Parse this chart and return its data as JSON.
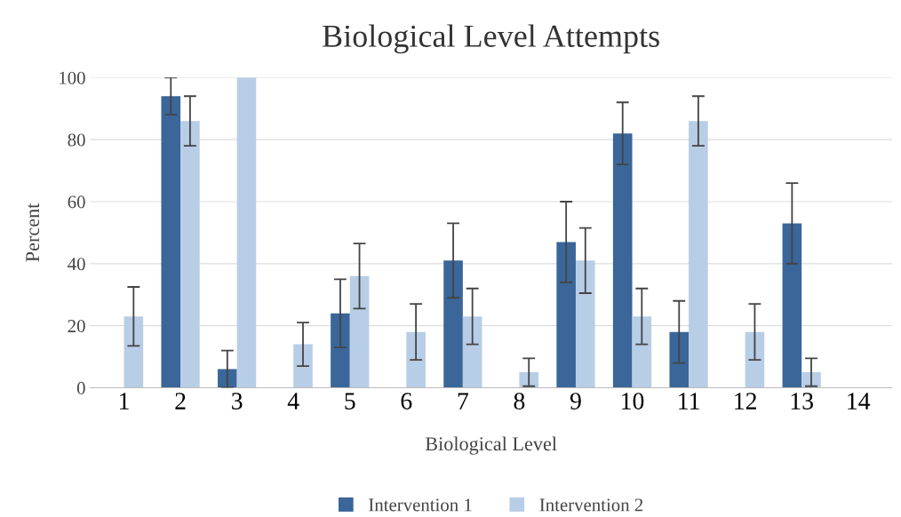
{
  "chart_data": {
    "type": "bar",
    "title": "Biological Level Attempts",
    "xlabel": "Biological Level",
    "ylabel": "Percent",
    "categories": [
      "1",
      "2",
      "3",
      "4",
      "5",
      "6",
      "7",
      "8",
      "9",
      "10",
      "11",
      "12",
      "13",
      "14"
    ],
    "series": [
      {
        "name": "Intervention 1",
        "color": "#3a6699",
        "values": [
          0,
          94,
          6,
          0,
          24,
          0,
          41,
          0,
          47,
          82,
          18,
          0,
          53,
          0
        ],
        "errors": [
          null,
          6,
          6,
          null,
          11,
          null,
          12,
          null,
          13,
          10,
          10,
          null,
          13,
          null
        ]
      },
      {
        "name": "Intervention 2",
        "color": "#b8cde6",
        "values": [
          23,
          86,
          100,
          14,
          36,
          18,
          23,
          5,
          41,
          23,
          86,
          18,
          5,
          0
        ],
        "errors": [
          9.5,
          8,
          null,
          7,
          10.5,
          9,
          9,
          4.5,
          10.5,
          9,
          8,
          9,
          4.5,
          null
        ]
      }
    ],
    "ylim": [
      0,
      100
    ],
    "yticks": [
      0,
      20,
      40,
      60,
      80,
      100
    ],
    "grid": "y",
    "legend": "bottom"
  }
}
